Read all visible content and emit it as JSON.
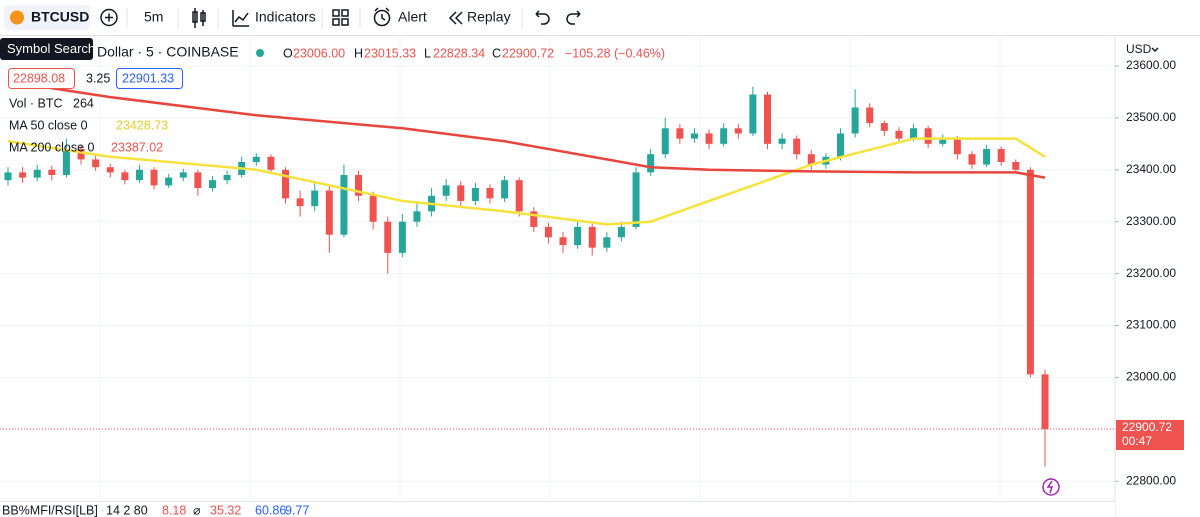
{
  "toolbar": {
    "symbol": "BTCUSD",
    "interval": "5m",
    "indicators": "Indicators",
    "alert": "Alert",
    "replay": "Replay"
  },
  "tooltip": "Symbol Search",
  "legend": {
    "symbol_info": "Dollar · 5 · COINBASE",
    "o_label": "O",
    "o": "23006.00",
    "h_label": "H",
    "h": "23015.33",
    "l_label": "L",
    "l": "22828.34",
    "c_label": "C",
    "c": "22900.72",
    "change": "−105.28 (−0.46%)",
    "bid": "22898.08",
    "spread": "3.25",
    "ask": "22901.33",
    "vol_name": "Vol · BTC",
    "vol": "264",
    "ma50_value": "23428.73",
    "ma200_value": "23387.02"
  },
  "bottom_pane": {
    "name": "BB%MFI/RSI[LB]",
    "params": "14 2 80",
    "v1": "8.18",
    "symbol": "⌀",
    "v2": "35.32",
    "v3": "60.86",
    "v4": "9.77"
  },
  "currency": "USD",
  "countdown": "00:47",
  "chart_data": {
    "type": "candlestick",
    "up_color": "#26a69a",
    "down_color": "#ef5350",
    "ylim": [
      22764,
      23650
    ],
    "yticks": [
      {
        "value": 23600,
        "label": "23600.00"
      },
      {
        "value": 23500,
        "label": "23500.00"
      },
      {
        "value": 23400,
        "label": "23400.00"
      },
      {
        "value": 23300,
        "label": "23300.00"
      },
      {
        "value": 23200,
        "label": "23200.00"
      },
      {
        "value": 23100,
        "label": "23100.00"
      },
      {
        "value": 23000,
        "label": "23000.00"
      },
      {
        "value": 22900,
        "label": "22900.00"
      },
      {
        "value": 22800,
        "label": "22800.00"
      }
    ],
    "open": [
      23380,
      23395,
      23385,
      23400,
      23390,
      23440,
      23420,
      23405,
      23395,
      23380,
      23400,
      23370,
      23385,
      23395,
      23365,
      23380,
      23390,
      23415,
      23425,
      23400,
      23345,
      23330,
      23360,
      23275,
      23390,
      23350,
      23300,
      23240,
      23300,
      23320,
      23350,
      23370,
      23340,
      23365,
      23345,
      23380,
      23320,
      23290,
      23270,
      23255,
      23290,
      23250,
      23270,
      23290,
      23395,
      23430,
      23480,
      23460,
      23470,
      23450,
      23480,
      23470,
      23545,
      23450,
      23460,
      23430,
      23410,
      23425,
      23470,
      23520,
      23490,
      23475,
      23460,
      23480,
      23450,
      23460,
      23430,
      23410,
      23440,
      23415,
      23400,
      23006
    ],
    "high": [
      23405,
      23405,
      23410,
      23408,
      23460,
      23448,
      23428,
      23412,
      23400,
      23410,
      23405,
      23392,
      23402,
      23400,
      23388,
      23398,
      23425,
      23432,
      23430,
      23405,
      23360,
      23375,
      23368,
      23410,
      23398,
      23358,
      23310,
      23315,
      23335,
      23365,
      23382,
      23378,
      23375,
      23372,
      23388,
      23385,
      23328,
      23298,
      23280,
      23300,
      23296,
      23280,
      23300,
      23405,
      23440,
      23500,
      23488,
      23480,
      23478,
      23490,
      23488,
      23560,
      23550,
      23470,
      23466,
      23438,
      23432,
      23480,
      23555,
      23528,
      23495,
      23482,
      23488,
      23485,
      23468,
      23465,
      23436,
      23448,
      23445,
      23420,
      23405,
      23015.33
    ],
    "low": [
      23370,
      23375,
      23378,
      23380,
      23385,
      23410,
      23398,
      23385,
      23372,
      23375,
      23362,
      23365,
      23378,
      23350,
      23358,
      23372,
      23385,
      23408,
      23392,
      23335,
      23310,
      23320,
      23240,
      23270,
      23340,
      23285,
      23200,
      23232,
      23290,
      23310,
      23340,
      23330,
      23332,
      23335,
      23338,
      23310,
      23280,
      23258,
      23240,
      23248,
      23235,
      23242,
      23262,
      23285,
      23388,
      23422,
      23450,
      23452,
      23440,
      23445,
      23460,
      23465,
      23440,
      23440,
      23420,
      23400,
      23402,
      23418,
      23462,
      23482,
      23465,
      23452,
      23455,
      23442,
      23445,
      23420,
      23402,
      23405,
      23408,
      23395,
      23000,
      22828.34
    ],
    "close": [
      23395,
      23385,
      23400,
      23390,
      23440,
      23420,
      23405,
      23395,
      23380,
      23400,
      23370,
      23385,
      23395,
      23365,
      23380,
      23390,
      23415,
      23425,
      23400,
      23345,
      23330,
      23360,
      23275,
      23390,
      23350,
      23300,
      23240,
      23300,
      23320,
      23350,
      23370,
      23340,
      23365,
      23345,
      23380,
      23320,
      23290,
      23270,
      23255,
      23290,
      23250,
      23270,
      23290,
      23395,
      23430,
      23480,
      23460,
      23470,
      23450,
      23480,
      23470,
      23545,
      23450,
      23460,
      23430,
      23410,
      23425,
      23470,
      23520,
      23490,
      23475,
      23460,
      23480,
      23450,
      23460,
      23430,
      23410,
      23440,
      23415,
      23400,
      23006,
      22900.72
    ],
    "ma_x": [
      0,
      7,
      17,
      27,
      34,
      41,
      44,
      48,
      55,
      62,
      69,
      71
    ],
    "series": [
      {
        "name": "MA 50 close 0",
        "color": "#f5e33b",
        "values": [
          23455,
          23425,
          23400,
          23340,
          23320,
          23295,
          23300,
          23340,
          23410,
          23460,
          23460,
          23425
        ]
      },
      {
        "name": "MA 200 close 0",
        "color": "#e8453c",
        "values": [
          23570,
          23540,
          23505,
          23480,
          23455,
          23420,
          23405,
          23400,
          23397,
          23395,
          23395,
          23385
        ]
      }
    ]
  }
}
